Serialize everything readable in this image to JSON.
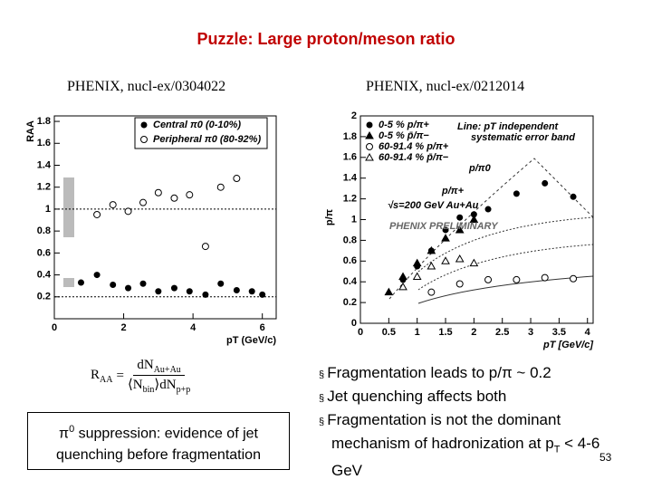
{
  "slide": {
    "title": "Puzzle: Large proton/meson ratio",
    "left_source": "PHENIX, nucl-ex/0304022",
    "right_source": "PHENIX, nucl-ex/0212014",
    "formula": {
      "lhs": "R",
      "lhs_sub": "AA",
      "num": "dN",
      "num_sub": "Au+Au",
      "den_a": "⟨N",
      "den_sub": "bin",
      "den_b": "⟩dN",
      "den_sub2": "p+p"
    },
    "box_text": {
      "symbol": "π",
      "sup": "0",
      "text": " suppression: evidence of jet quenching before fragmentation"
    },
    "bullets": [
      {
        "text": "Fragmentation leads to p/π ~ 0.2"
      },
      {
        "text": "Jet quenching affects both"
      },
      {
        "text": "Fragmentation is not the dominant mechanism of hadronization at p",
        "sub": "T",
        "tail": "  < 4-6 GeV"
      }
    ],
    "page_number": "53"
  },
  "chart_data": [
    {
      "type": "scatter",
      "x_label": "pT (GeV/c)",
      "y_label": "RAA",
      "xlim": [
        0,
        6.4
      ],
      "xticks": [
        0,
        2,
        4,
        6
      ],
      "ylim": [
        0,
        1.85
      ],
      "yticks": [
        0.2,
        0.4,
        0.6,
        0.8,
        1,
        1.2,
        1.4,
        1.6,
        1.8
      ],
      "reference_lines": [
        1,
        0.2
      ],
      "legend": "upper-right",
      "series": [
        {
          "name": "Central π0 (0-10%)",
          "color": "#000000",
          "marker": "filled-circle",
          "x": [
            0.77,
            1.23,
            1.69,
            2.13,
            2.56,
            3.0,
            3.46,
            3.9,
            4.36,
            4.8,
            5.26,
            5.7,
            6.0
          ],
          "values": [
            0.33,
            0.4,
            0.31,
            0.28,
            0.32,
            0.25,
            0.28,
            0.25,
            0.22,
            0.32,
            0.26,
            0.25,
            0.22
          ]
        },
        {
          "name": "Peripheral π0 (80-92%)",
          "color": "#000000",
          "marker": "open-circle",
          "x": [
            1.23,
            1.69,
            2.13,
            2.56,
            3.0,
            3.46,
            3.9,
            4.36,
            4.8,
            5.26
          ],
          "values": [
            0.95,
            1.04,
            0.98,
            1.06,
            1.15,
            1.1,
            1.13,
            0.66,
            1.2,
            1.28
          ]
        }
      ]
    },
    {
      "type": "scatter",
      "x_label": "pT [GeV/c]",
      "y_label": "p/π",
      "xlim": [
        0,
        4.1
      ],
      "xticks": [
        0,
        0.5,
        1,
        1.5,
        2,
        2.5,
        3,
        3.5,
        4
      ],
      "ylim": [
        0,
        2
      ],
      "yticks": [
        0,
        0.2,
        0.4,
        0.6,
        0.8,
        1,
        1.2,
        1.4,
        1.6,
        1.8,
        2
      ],
      "legend": "upper-left",
      "annotations": [
        "Line: pT independent",
        "systematic error band",
        "p/π0",
        "p/π+",
        "√s=200 GeV Au+Au",
        "PHENIX PRELIMINARY"
      ],
      "series": [
        {
          "name": "0-5 %  p/π+",
          "color": "#000000",
          "marker": "filled-circle",
          "x": [
            0.75,
            1.0,
            1.25,
            1.5,
            1.75,
            2.0,
            2.25,
            2.75,
            3.25,
            3.75
          ],
          "values": [
            0.42,
            0.55,
            0.7,
            0.9,
            1.02,
            1.05,
            1.1,
            1.25,
            1.35,
            1.22
          ]
        },
        {
          "name": "0-5 %  p̄/π−",
          "color": "#000000",
          "marker": "filled-triangle",
          "x": [
            0.5,
            0.75,
            1.0,
            1.25,
            1.5,
            1.75,
            2.0
          ],
          "values": [
            0.3,
            0.45,
            0.58,
            0.7,
            0.82,
            0.9,
            1.0
          ]
        },
        {
          "name": "60-91.4 %  p/π+",
          "color": "#000000",
          "marker": "open-circle",
          "x": [
            1.25,
            1.75,
            2.25,
            2.75,
            3.25,
            3.75
          ],
          "values": [
            0.3,
            0.38,
            0.42,
            0.42,
            0.44,
            0.43
          ]
        },
        {
          "name": "60-91.4 %  p̄/π−",
          "color": "#000000",
          "marker": "open-triangle",
          "x": [
            0.75,
            1.0,
            1.25,
            1.5,
            1.75,
            2.0
          ],
          "values": [
            0.35,
            0.45,
            0.55,
            0.6,
            0.62,
            0.58
          ]
        }
      ]
    }
  ]
}
